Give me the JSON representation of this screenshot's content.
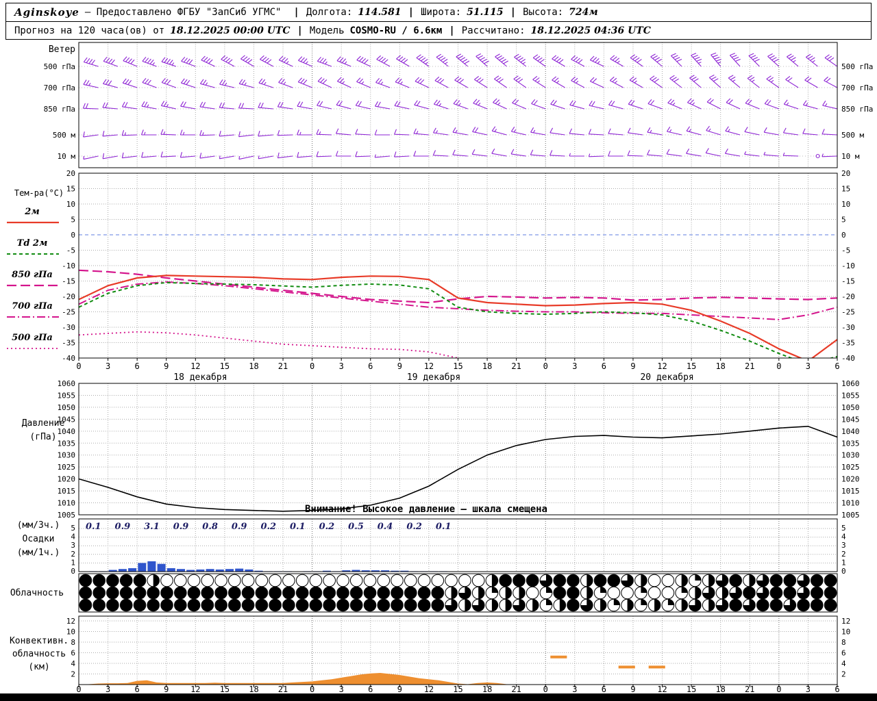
{
  "header": {
    "station": "Aginskoye",
    "provider": "— Предоставлено ФГБУ \"ЗапСиб УГМС\"",
    "sep": "|",
    "lon_label": "Долгота:",
    "lon_value": "114.581",
    "lat_label": "Широта:",
    "lat_value": "51.115",
    "alt_label": "Высота:",
    "alt_value": "724м",
    "forecast_label": "Прогноз на 120 часа(ов) от",
    "run_value": "18.12.2025 00:00 UTC",
    "model_label": "Модель",
    "model_value": "COSMO-RU / 6.6км",
    "calc_label": "Рассчитано:",
    "calc_value": "18.12.2025 04:36 UTC"
  },
  "panels": {
    "wind": {
      "title": "Ветер",
      "levels": [
        "500 гПа",
        "700 гПа",
        "850 гПа",
        "500 м",
        "10 м"
      ]
    },
    "temp": {
      "legend_title": "Тем-ра(°C)",
      "legend": [
        {
          "label": "2м",
          "series": "t2m"
        },
        {
          "label": "Td 2м",
          "series": "td2m"
        },
        {
          "label": "850 гПа",
          "series": "t850"
        },
        {
          "label": "700 гПа",
          "series": "t700"
        },
        {
          "label": "500 гПа",
          "series": "t500"
        }
      ],
      "yticks": [
        20,
        15,
        10,
        5,
        0,
        -5,
        -10,
        -15,
        -20,
        -25,
        -30,
        -35,
        -40
      ]
    },
    "pressure": {
      "title_lines": [
        "Давление",
        "(гПа)"
      ],
      "yticks": [
        1060,
        1055,
        1050,
        1045,
        1040,
        1035,
        1030,
        1025,
        1020,
        1015,
        1010,
        1005
      ],
      "warning": "Внимание! Высокое давление — шкала смещена"
    },
    "precip": {
      "title_lines": [
        "(мм/3ч.)",
        "Осадки",
        "(мм/1ч.)"
      ],
      "yticks": [
        5,
        4,
        3,
        2,
        1,
        0
      ]
    },
    "cloud": {
      "title": "Облачность"
    },
    "conv": {
      "title_lines": [
        "Конвективн.",
        "облачность",
        "(км)"
      ],
      "yticks": [
        12,
        10,
        8,
        6,
        4,
        2
      ]
    }
  },
  "time_axis": {
    "hours_total": 78,
    "tick_step_h": 3,
    "tick_labels": [
      "0",
      "3",
      "6",
      "9",
      "12",
      "15",
      "18",
      "21",
      "0",
      "3",
      "6",
      "9",
      "12",
      "15",
      "18",
      "21",
      "0",
      "3",
      "6",
      "9",
      "12",
      "15",
      "18",
      "21",
      "0",
      "3",
      "6"
    ],
    "dates": [
      "18 декабря",
      "19 декабря",
      "20 декабря"
    ]
  },
  "colors": {
    "wind_barb": "#8d22d4",
    "temp_2m": "#e83b28",
    "dewpoint": "#118c11",
    "upper_magenta": "#d4148c",
    "pressure": "#000000",
    "precip": "#2f55cc",
    "precip_label": "#1c1c64",
    "convective": "#ee8f30",
    "zero_line": "#5c7ce0",
    "grid": "#aaaaaa"
  },
  "chart_data": {
    "type": "meteogram",
    "temp": {
      "type": "line",
      "unit": "°C",
      "hour_step": 3,
      "ylim": [
        -40,
        20
      ],
      "series": {
        "t2m": [
          -21,
          -16.5,
          -14,
          -13.2,
          -13.4,
          -13.6,
          -13.8,
          -14.3,
          -14.5,
          -13.8,
          -13.4,
          -13.5,
          -14.5,
          -20.5,
          -22,
          -22.5,
          -23,
          -22.8,
          -22.3,
          -22,
          -22.5,
          -24.5,
          -28,
          -32,
          -37,
          -41,
          -34
        ],
        "td2m": [
          -23.5,
          -19,
          -16.5,
          -15.5,
          -15.8,
          -16,
          -16.2,
          -16.6,
          -17,
          -16.4,
          -16,
          -16.3,
          -17.5,
          -23.5,
          -25,
          -25.5,
          -25.8,
          -25.5,
          -25,
          -25.3,
          -26,
          -28,
          -31,
          -34.5,
          -38.5,
          -42,
          -39.5
        ],
        "t850": [
          -11.5,
          -12,
          -12.8,
          -14,
          -15,
          -16,
          -17,
          -18,
          -19,
          -20,
          -21,
          -21.5,
          -22,
          -20.8,
          -20,
          -20.2,
          -20.5,
          -20.3,
          -20.5,
          -21.2,
          -21,
          -20.5,
          -20.3,
          -20.5,
          -20.8,
          -21,
          -20.5
        ],
        "t700": [
          -22.5,
          -18,
          -16,
          -15.3,
          -15.8,
          -16.5,
          -17.5,
          -18.5,
          -19.5,
          -20.5,
          -21.5,
          -22.5,
          -23.5,
          -24,
          -24.5,
          -24.8,
          -25,
          -25,
          -25.3,
          -25.5,
          -25.5,
          -26,
          -26.5,
          -27,
          -27.5,
          -26,
          -23.5
        ],
        "t500": [
          -32.5,
          -32,
          -31.5,
          -31.8,
          -32.5,
          -33.5,
          -34.5,
          -35.5,
          -36,
          -36.5,
          -37,
          -37.2,
          -38,
          -40,
          -41.5,
          -42,
          -42.5,
          -42.5,
          -43,
          -43,
          -43.5,
          -43.5,
          -44,
          -44,
          -44.5,
          -44.5,
          -44
        ]
      }
    },
    "pressure": {
      "type": "line",
      "unit": "гПа",
      "hour_step": 3,
      "ylim": [
        1005,
        1060
      ],
      "values": [
        1020,
        1016.5,
        1012.5,
        1009.5,
        1008,
        1007.2,
        1006.8,
        1006.5,
        1006.8,
        1007.5,
        1009,
        1012,
        1017,
        1024,
        1030,
        1034,
        1036.5,
        1037.8,
        1038.2,
        1037.5,
        1037.2,
        1038,
        1038.8,
        1040,
        1041.3,
        1042,
        1037.5
      ]
    },
    "precip": {
      "type": "bar",
      "unit_bars": "мм/1ч",
      "unit_labels": "мм/3ч",
      "ylim": [
        0,
        5
      ],
      "sum_3h_labels": [
        "0.1",
        "0.9",
        "3.1",
        "0.9",
        "0.8",
        "0.9",
        "0.2",
        "0.1",
        "0.2",
        "0.5",
        "0.4",
        "0.2",
        "0.1"
      ],
      "hourly": [
        0,
        0.05,
        0.05,
        0.2,
        0.3,
        0.4,
        1.0,
        1.2,
        0.9,
        0.4,
        0.3,
        0.2,
        0.25,
        0.3,
        0.25,
        0.3,
        0.35,
        0.25,
        0.1,
        0.05,
        0.05,
        0.05,
        0,
        0.05,
        0.05,
        0.1,
        0.05,
        0.15,
        0.2,
        0.15,
        0.15,
        0.15,
        0.1,
        0.1,
        0.05,
        0.05,
        0.05,
        0.05,
        0,
        0,
        0,
        0,
        0,
        0,
        0,
        0,
        0,
        0,
        0,
        0,
        0,
        0,
        0,
        0,
        0,
        0,
        0,
        0,
        0,
        0,
        0,
        0,
        0,
        0,
        0,
        0,
        0,
        0,
        0,
        0,
        0,
        0,
        0,
        0,
        0,
        0,
        0,
        0
      ]
    },
    "cloud": {
      "type": "symbol-row",
      "symbol": "cloud-cover-circle",
      "rows": [
        {
          "fractions": [
            1,
            1,
            1,
            1,
            1,
            0.5,
            0,
            0,
            0,
            0,
            0,
            0,
            0,
            0,
            0,
            0,
            0,
            0,
            0,
            0,
            0,
            0,
            0,
            0,
            0,
            0,
            0,
            0,
            0,
            0,
            0.5,
            1,
            1,
            1,
            0.75,
            1,
            1,
            0.5,
            1,
            1,
            0.75,
            0.5,
            0,
            0,
            0.5,
            0.25,
            0.5,
            0.75,
            1,
            0.5,
            0.75,
            1,
            1,
            0.75,
            1,
            1
          ]
        },
        {
          "fractions": [
            1,
            1,
            1,
            1,
            1,
            1,
            1,
            1,
            1,
            1,
            1,
            1,
            1,
            1,
            1,
            1,
            1,
            1,
            1,
            1,
            1,
            1,
            1,
            1,
            1,
            1,
            1,
            0.5,
            0.75,
            0.5,
            0.25,
            0.5,
            0.5,
            0,
            0.25,
            1,
            1,
            0.5,
            0.25,
            0,
            0,
            0.25,
            0,
            0,
            0.25,
            0.5,
            0.75,
            0.5,
            0.75,
            1,
            0.75,
            1,
            1,
            0.75,
            1,
            1
          ]
        },
        {
          "fractions": [
            1,
            1,
            1,
            1,
            1,
            1,
            1,
            1,
            1,
            1,
            1,
            1,
            1,
            1,
            1,
            1,
            1,
            1,
            1,
            1,
            1,
            1,
            1,
            1,
            1,
            1,
            1,
            0.75,
            0.5,
            0.75,
            0.5,
            0.5,
            0.75,
            0.5,
            0.25,
            0.5,
            1,
            0.75,
            0.5,
            0.25,
            0.5,
            0.25,
            0.5,
            0.25,
            0.5,
            0.75,
            0.5,
            0.75,
            1,
            0.75,
            1,
            1,
            0.75,
            1,
            1,
            1
          ]
        }
      ]
    },
    "convective": {
      "type": "area",
      "unit": "км",
      "ylim": [
        0,
        12
      ],
      "hourly_top_km": [
        0,
        0.2,
        0.25,
        0.25,
        0.3,
        0.7,
        0.8,
        0.4,
        0.3,
        0.3,
        0.3,
        0.3,
        0.3,
        0.35,
        0.3,
        0.3,
        0.3,
        0.3,
        0.3,
        0.3,
        0.3,
        0.4,
        0.5,
        0.6,
        0.8,
        1.0,
        1.3,
        1.6,
        1.9,
        2.1,
        2.2,
        2.0,
        1.8,
        1.5,
        1.2,
        1.0,
        0.8,
        0.5,
        0.2,
        0,
        0.3,
        0.4,
        0.3,
        0,
        0,
        0,
        0,
        0,
        0,
        0,
        0,
        0,
        0,
        0,
        0,
        0,
        0,
        0,
        0,
        0,
        0,
        0,
        0,
        0,
        0,
        0,
        0,
        0,
        0,
        0,
        0,
        0,
        0,
        0,
        0,
        0,
        0,
        0
      ],
      "elevated_layers": [
        {
          "from_h": 48.5,
          "to_h": 50.2,
          "km": 5.2
        },
        {
          "from_h": 55.5,
          "to_h": 57.2,
          "km": 3.3
        },
        {
          "from_h": 58.6,
          "to_h": 60.3,
          "km": 3.3
        }
      ]
    },
    "wind": {
      "type": "wind-barb",
      "unit": "м/с",
      "hour_step": 2,
      "levels": [
        {
          "name": "500 гПа",
          "dir_deg": [
            285,
            287,
            290,
            292,
            290,
            288,
            290,
            295,
            298,
            300,
            298,
            295,
            293,
            290,
            292,
            295,
            298,
            300,
            305,
            308,
            310,
            312,
            310,
            308,
            305,
            300,
            298,
            295,
            300,
            305,
            310,
            315,
            318,
            320,
            318,
            315,
            312,
            310,
            308,
            305
          ],
          "speed_ms": [
            18,
            19,
            20,
            21,
            22,
            22,
            21,
            20,
            20,
            19,
            19,
            18,
            18,
            17,
            18,
            19,
            20,
            21,
            22,
            23,
            24,
            25,
            24,
            22,
            21,
            20,
            19,
            18,
            18,
            19,
            20,
            21,
            22,
            22,
            21,
            20,
            19,
            18,
            17,
            16
          ]
        },
        {
          "name": "700 гПа",
          "dir_deg": [
            280,
            282,
            285,
            288,
            290,
            290,
            288,
            285,
            283,
            285,
            288,
            290,
            292,
            295,
            295,
            293,
            290,
            292,
            295,
            298,
            300,
            302,
            305,
            305,
            302,
            300,
            298,
            295,
            298,
            300,
            305,
            308,
            310,
            312,
            310,
            308,
            305,
            302,
            300,
            298
          ],
          "speed_ms": [
            12,
            13,
            14,
            15,
            15,
            14,
            14,
            13,
            13,
            12,
            12,
            13,
            14,
            14,
            13,
            13,
            12,
            13,
            14,
            15,
            16,
            16,
            15,
            14,
            13,
            12,
            12,
            11,
            12,
            13,
            14,
            15,
            15,
            14,
            13,
            12,
            12,
            11,
            10,
            10
          ]
        },
        {
          "name": "850 гПа",
          "dir_deg": [
            270,
            272,
            275,
            278,
            280,
            282,
            280,
            278,
            275,
            273,
            275,
            278,
            280,
            283,
            285,
            283,
            280,
            282,
            285,
            288,
            290,
            292,
            295,
            293,
            290,
            288,
            285,
            283,
            285,
            288,
            290,
            293,
            295,
            297,
            295,
            292,
            290,
            288,
            285,
            283
          ],
          "speed_ms": [
            8,
            9,
            10,
            11,
            12,
            12,
            11,
            10,
            10,
            9,
            9,
            10,
            11,
            11,
            10,
            10,
            9,
            10,
            11,
            12,
            12,
            13,
            12,
            11,
            10,
            10,
            9,
            9,
            10,
            10,
            11,
            12,
            12,
            11,
            10,
            10,
            9,
            8,
            8,
            7
          ]
        },
        {
          "name": "500 м",
          "dir_deg": [
            260,
            262,
            265,
            268,
            270,
            272,
            270,
            268,
            265,
            263,
            265,
            268,
            270,
            272,
            275,
            273,
            270,
            272,
            275,
            278,
            280,
            282,
            285,
            283,
            280,
            278,
            275,
            273,
            275,
            278,
            280,
            283,
            285,
            287,
            285,
            282,
            280,
            278,
            275,
            273
          ],
          "speed_ms": [
            5,
            6,
            6,
            7,
            8,
            8,
            7,
            7,
            6,
            6,
            5,
            6,
            7,
            7,
            6,
            6,
            5,
            6,
            7,
            8,
            8,
            9,
            8,
            7,
            7,
            6,
            6,
            5,
            6,
            6,
            7,
            8,
            8,
            7,
            7,
            6,
            6,
            5,
            5,
            4
          ]
        },
        {
          "name": "10 м",
          "dir_deg": [
            255,
            258,
            260,
            263,
            265,
            267,
            265,
            262,
            260,
            258,
            260,
            263,
            265,
            268,
            270,
            268,
            265,
            267,
            270,
            273,
            275,
            277,
            280,
            278,
            275,
            273,
            270,
            268,
            270,
            272,
            275,
            278,
            280,
            282,
            280,
            277,
            275,
            272,
            270,
            268
          ],
          "speed_ms": [
            3,
            3,
            4,
            4,
            5,
            5,
            4,
            4,
            3,
            3,
            3,
            4,
            4,
            5,
            4,
            4,
            3,
            4,
            4,
            5,
            5,
            6,
            5,
            5,
            4,
            4,
            3,
            3,
            4,
            4,
            5,
            5,
            5,
            4,
            4,
            3,
            3,
            3,
            0,
            2
          ]
        }
      ]
    }
  }
}
